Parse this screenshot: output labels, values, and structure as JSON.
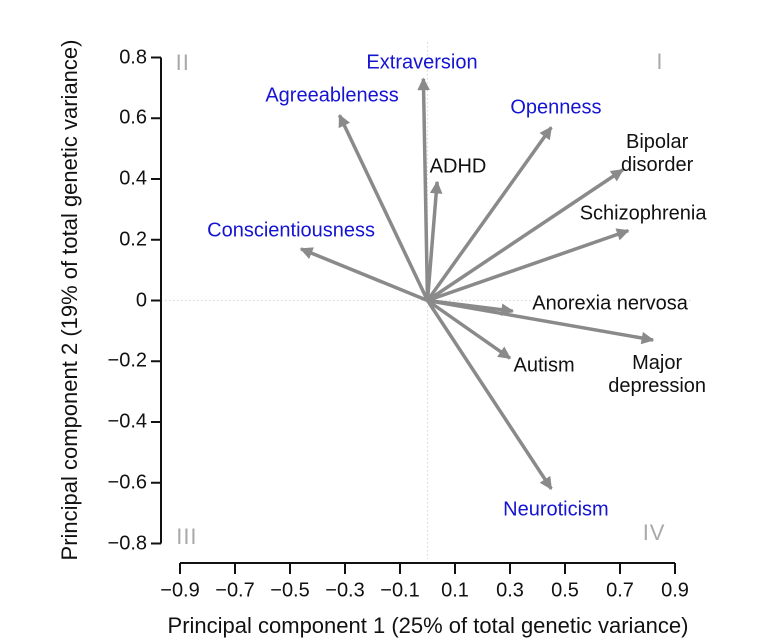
{
  "figure": {
    "background": "#ffffff"
  },
  "colors": {
    "arrow": "#8a8a8a",
    "black_label": "#111111",
    "blue_label": "#1414d2",
    "quadrant_label": "#a9a9a9",
    "zero_line": "#d9d9d9",
    "axis": "#111111"
  },
  "chart_data": {
    "type": "scatter",
    "subtype": "pca-loadings-biplot (arrows from origin)",
    "title": "",
    "xlabel": "Principal component 1 (25% of total genetic variance)",
    "ylabel": "Principal component 2 (19% of total genetic variance)",
    "xlim": [
      -0.97,
      0.97
    ],
    "ylim": [
      -0.85,
      0.85
    ],
    "grid": "off; light dotted reference lines at x=0 and y=0",
    "legend_position": "none",
    "x_ticks": [
      {
        "value": -0.9,
        "label": "−0.9"
      },
      {
        "value": -0.7,
        "label": "−0.7"
      },
      {
        "value": -0.5,
        "label": "−0.5"
      },
      {
        "value": -0.3,
        "label": "−0.3"
      },
      {
        "value": -0.1,
        "label": "−0.1"
      },
      {
        "value": 0.1,
        "label": "0.1"
      },
      {
        "value": 0.3,
        "label": "0.3"
      },
      {
        "value": 0.5,
        "label": "0.5"
      },
      {
        "value": 0.7,
        "label": "0.7"
      },
      {
        "value": 0.9,
        "label": "0.9"
      }
    ],
    "y_ticks": [
      {
        "value": 0.8,
        "label": "0.8"
      },
      {
        "value": 0.6,
        "label": "0.6"
      },
      {
        "value": 0.4,
        "label": "0.4"
      },
      {
        "value": 0.2,
        "label": "0.2"
      },
      {
        "value": 0,
        "label": "0"
      },
      {
        "value": -0.2,
        "label": "−0.2"
      },
      {
        "value": -0.4,
        "label": "−0.4"
      },
      {
        "value": -0.6,
        "label": "−0.6"
      },
      {
        "value": -0.8,
        "label": "−0.8"
      }
    ],
    "quadrant_labels": [
      {
        "text": "I",
        "x": 0.845,
        "y": 0.785
      },
      {
        "text": "II",
        "x": -0.89,
        "y": 0.782
      },
      {
        "text": "III",
        "x": -0.875,
        "y": -0.779
      },
      {
        "text": "IV",
        "x": 0.824,
        "y": -0.765
      }
    ],
    "vectors": [
      {
        "name": "extraversion",
        "label": "Extraversion",
        "x": -0.015,
        "y": 0.73,
        "group": "personality",
        "label_x": -0.02,
        "label_y": 0.782
      },
      {
        "name": "agreeableness",
        "label": "Agreeableness",
        "x": -0.32,
        "y": 0.61,
        "group": "personality",
        "label_x": -0.347,
        "label_y": 0.673
      },
      {
        "name": "openness",
        "label": "Openness",
        "x": 0.45,
        "y": 0.57,
        "group": "personality",
        "label_x": 0.467,
        "label_y": 0.634
      },
      {
        "name": "conscientiousness",
        "label": "Conscientiousness",
        "x": -0.46,
        "y": 0.17,
        "group": "personality",
        "label_x": -0.496,
        "label_y": 0.229
      },
      {
        "name": "neuroticism",
        "label": "Neuroticism",
        "x": 0.45,
        "y": -0.62,
        "group": "personality",
        "label_x": 0.467,
        "label_y": -0.69
      },
      {
        "name": "adhd",
        "label": "ADHD",
        "x": 0.035,
        "y": 0.39,
        "group": "disorder",
        "label_x": 0.111,
        "label_y": 0.44
      },
      {
        "name": "bipolar-disorder",
        "label": "Bipolar disorder",
        "x": 0.71,
        "y": 0.43,
        "group": "disorder",
        "label_x": 0.835,
        "label_y": 0.482
      },
      {
        "name": "schizophrenia",
        "label": "Schizophrenia",
        "x": 0.73,
        "y": 0.23,
        "group": "disorder",
        "label_x": 0.784,
        "label_y": 0.285
      },
      {
        "name": "anorexia-nervosa",
        "label": "Anorexia nervosa",
        "x": 0.31,
        "y": -0.035,
        "group": "disorder",
        "label_x": 0.664,
        "label_y": -0.012
      },
      {
        "name": "autism",
        "label": "Autism",
        "x": 0.3,
        "y": -0.19,
        "group": "disorder",
        "label_x": 0.424,
        "label_y": -0.216
      },
      {
        "name": "major-depression",
        "label": "Major\ndepression",
        "x": 0.82,
        "y": -0.13,
        "group": "disorder",
        "label_x": 0.835,
        "label_y": -0.245
      }
    ]
  }
}
